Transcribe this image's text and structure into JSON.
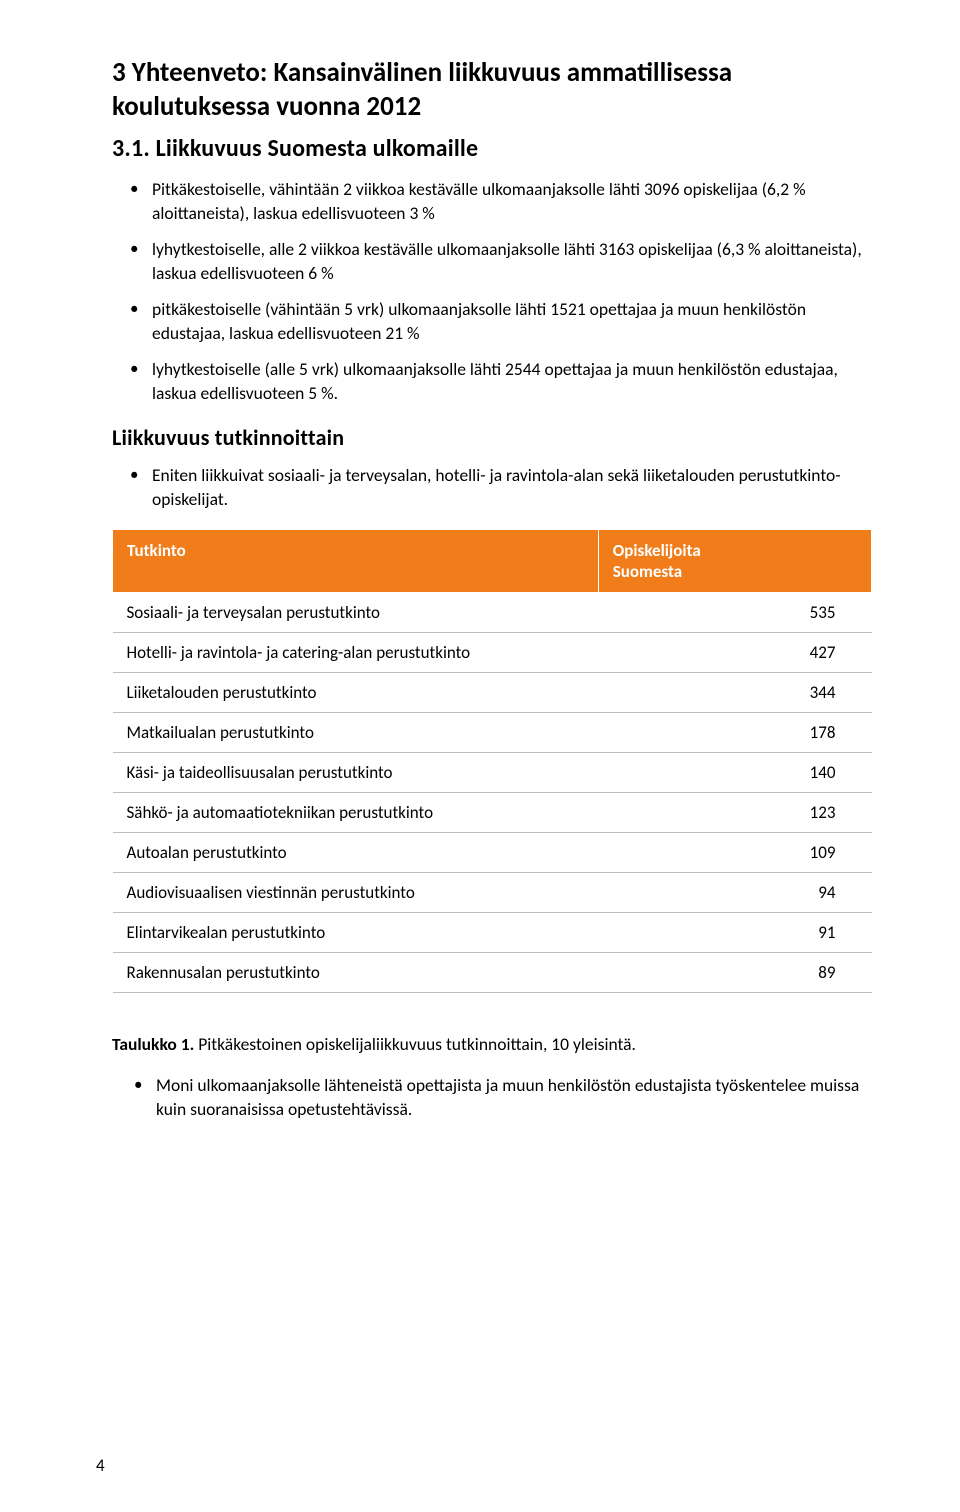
{
  "colors": {
    "header_bg": "#f07d1a",
    "header_text": "#ffffff",
    "row_border": "#bfbfbf",
    "text": "#000000",
    "page_bg": "#ffffff"
  },
  "typography": {
    "h1_fontsize_pt": 20,
    "h2_fontsize_pt": 18,
    "h3_fontsize_pt": 16,
    "body_fontsize_pt": 13,
    "font_family": "Calibri"
  },
  "heading": {
    "line1": "3 Yhteenveto: Kansainvälinen liikkuvuus ammatillisessa",
    "line2": "koulutuksessa vuonna 2012"
  },
  "section31": {
    "title": "3.1. Liikkuvuus Suomesta ulkomaille",
    "bullets": [
      "Pitkäkestoiselle, vähintään 2 viikkoa kestävälle ulkomaanjaksolle lähti 3096 opiskelijaa (6,2 % aloittaneista), laskua edellisvuoteen 3 %",
      "lyhytkestoiselle, alle 2 viikkoa kestävälle ulkomaanjaksolle lähti 3163 opiskelijaa (6,3 % aloittaneista), laskua edellisvuoteen 6 %",
      "pitkäkestoiselle (vähintään 5 vrk) ulkomaanjaksolle lähti 1521 opettajaa ja muun henkilöstön edustajaa, laskua edellisvuoteen 21 %",
      "lyhytkestoiselle (alle 5 vrk) ulkomaanjaksolle lähti 2544 opettajaa ja muun henkilöstön edustajaa, laskua edellisvuoteen 5 %."
    ]
  },
  "section_tutk": {
    "title": "Liikkuvuus tutkinnoittain",
    "bullets": [
      "Eniten liikkuivat sosiaali- ja terveysalan, hotelli- ja ravintola-alan sekä liiketalouden perustutkinto-opiskelijat."
    ]
  },
  "table": {
    "type": "table",
    "columns": [
      "Tutkinto",
      "Opiskelijoita Suomesta"
    ],
    "header_bg": "#f07d1a",
    "header_text_color": "#ffffff",
    "row_border_color": "#bfbfbf",
    "col_widths_pct": [
      64,
      36
    ],
    "num_align": "right",
    "rows": [
      [
        "Sosiaali- ja terveysalan perustutkinto",
        535
      ],
      [
        "Hotelli- ja ravintola- ja catering-alan perustutkinto",
        427
      ],
      [
        "Liiketalouden perustutkinto",
        344
      ],
      [
        "Matkailualan perustutkinto",
        178
      ],
      [
        "Käsi- ja taideollisuusalan perustutkinto",
        140
      ],
      [
        "Sähkö- ja automaatiotekniikan perustutkinto",
        123
      ],
      [
        "Autoalan perustutkinto",
        109
      ],
      [
        "Audiovisuaalisen viestinnän perustutkinto",
        94
      ],
      [
        "Elintarvikealan perustutkinto",
        91
      ],
      [
        "Rakennusalan perustutkinto",
        89
      ]
    ]
  },
  "caption": {
    "label": "Taulukko 1.",
    "text": " Pitkäkestoinen opiskelijaliikkuvuus tutkinnoittain, 10 yleisintä."
  },
  "final_bullet": "Moni ulkomaanjaksolle lähteneistä opettajista ja muun henkilöstön edustajista työskentelee muissa kuin suoranaisissa opetustehtävissä.",
  "page_number": "4"
}
